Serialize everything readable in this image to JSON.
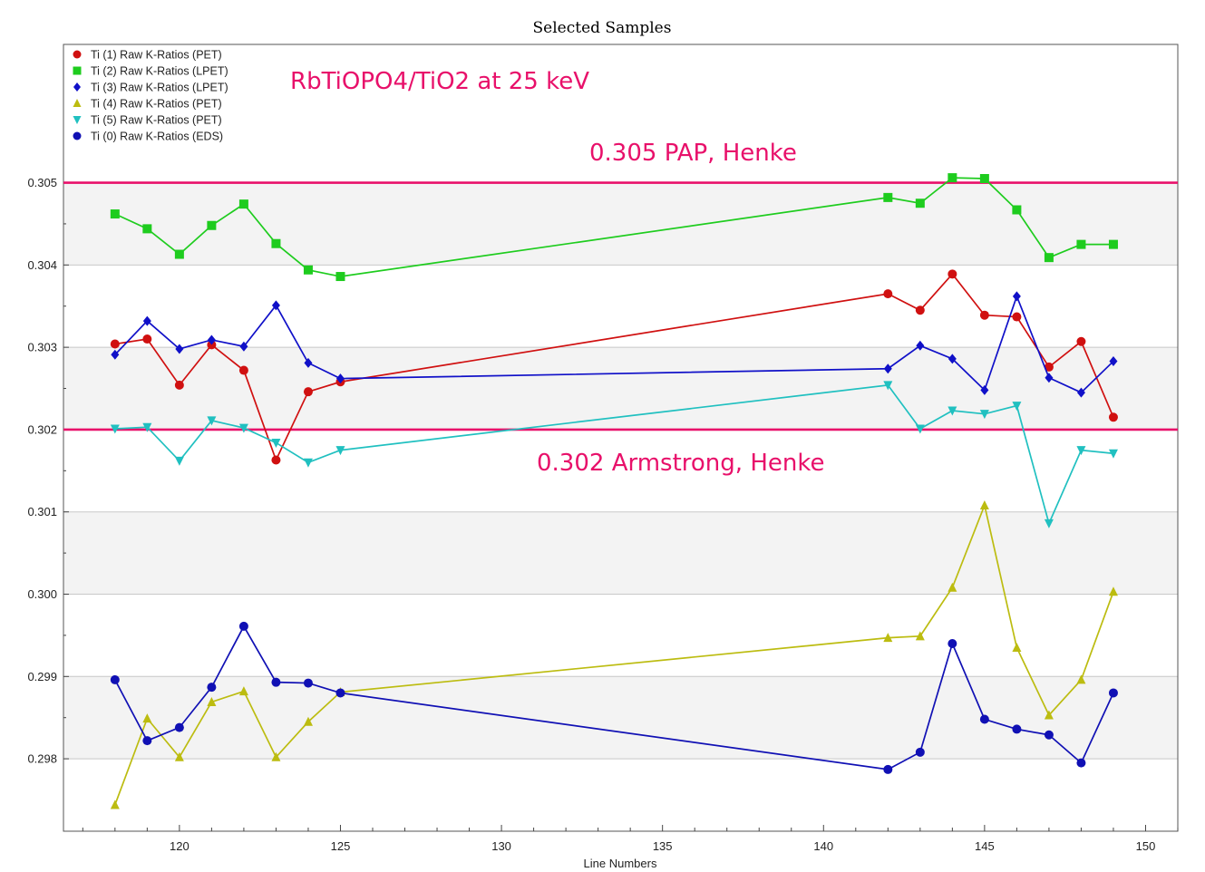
{
  "chart_data": {
    "type": "line",
    "title": "Selected Samples",
    "xlabel": "Line Numbers",
    "ylabel": "",
    "xlim": [
      116.4,
      151.0
    ],
    "ylim": [
      0.29712,
      0.30668
    ],
    "xticks": [
      120,
      125,
      130,
      135,
      140,
      145,
      150
    ],
    "xtick_labels": [
      "120",
      "125",
      "130",
      "135",
      "140",
      "145",
      "150"
    ],
    "yticks": [
      0.298,
      0.299,
      0.3,
      0.301,
      0.302,
      0.303,
      0.304,
      0.305
    ],
    "ytick_labels": [
      "0.298",
      "0.299",
      "0.300",
      "0.301",
      "0.302",
      "0.303",
      "0.304",
      "0.305"
    ],
    "grid": true,
    "legend_position": "top-left",
    "series": [
      {
        "name": "Ti (1) Raw K-Ratios (PET)",
        "color": "#d01010",
        "marker": "circle",
        "x": [
          118,
          119,
          120,
          121,
          122,
          123,
          124,
          125,
          142,
          143,
          144,
          145,
          146,
          147,
          148,
          149
        ],
        "y": [
          0.30304,
          0.3031,
          0.30254,
          0.30303,
          0.30272,
          0.30163,
          0.30246,
          0.30258,
          0.30365,
          0.30345,
          0.30389,
          0.30339,
          0.30337,
          0.30276,
          0.30307,
          0.30215
        ]
      },
      {
        "name": "Ti (2) Raw K-Ratios (LPET)",
        "color": "#1ecc1e",
        "marker": "square",
        "x": [
          118,
          119,
          120,
          121,
          122,
          123,
          124,
          125,
          142,
          143,
          144,
          145,
          146,
          147,
          148,
          149
        ],
        "y": [
          0.30462,
          0.30444,
          0.30413,
          0.30448,
          0.30474,
          0.30426,
          0.30394,
          0.30386,
          0.30482,
          0.30475,
          0.30506,
          0.30505,
          0.30467,
          0.30409,
          0.30425,
          0.30425
        ]
      },
      {
        "name": "Ti (3) Raw K-Ratios (LPET)",
        "color": "#1010c8",
        "marker": "diamond",
        "x": [
          118,
          119,
          120,
          121,
          122,
          123,
          124,
          125,
          142,
          143,
          144,
          145,
          146,
          147,
          148,
          149
        ],
        "y": [
          0.30291,
          0.30332,
          0.30298,
          0.30309,
          0.30301,
          0.30351,
          0.30281,
          0.30262,
          0.30274,
          0.30302,
          0.30286,
          0.30248,
          0.30362,
          0.30263,
          0.30245,
          0.30283
        ]
      },
      {
        "name": "Ti (4) Raw K-Ratios (PET)",
        "color": "#bcbc10",
        "marker": "triangle-up",
        "x": [
          118,
          119,
          120,
          121,
          122,
          123,
          124,
          125,
          142,
          143,
          144,
          145,
          146,
          147,
          148,
          149
        ],
        "y": [
          0.29744,
          0.29849,
          0.29802,
          0.29869,
          0.29882,
          0.29802,
          0.29845,
          0.29881,
          0.29947,
          0.29949,
          0.30008,
          0.30108,
          0.29935,
          0.29853,
          0.29896,
          0.30003
        ]
      },
      {
        "name": "Ti (5) Raw K-Ratios (PET)",
        "color": "#20c0c0",
        "marker": "triangle-down",
        "x": [
          118,
          119,
          120,
          121,
          122,
          123,
          124,
          125,
          142,
          143,
          144,
          145,
          146,
          147,
          148,
          149
        ],
        "y": [
          0.30201,
          0.30203,
          0.30162,
          0.30211,
          0.30202,
          0.30184,
          0.3016,
          0.30175,
          0.30254,
          0.30201,
          0.30223,
          0.30219,
          0.30229,
          0.30086,
          0.30175,
          0.30171
        ]
      },
      {
        "name": "Ti (0) Raw K-Ratios (EDS)",
        "color": "#1010b4",
        "marker": "circle",
        "x": [
          118,
          119,
          120,
          121,
          122,
          123,
          124,
          125,
          142,
          143,
          144,
          145,
          146,
          147,
          148,
          149
        ],
        "y": [
          0.29896,
          0.29822,
          0.29838,
          0.29887,
          0.29961,
          0.29893,
          0.29892,
          0.2988,
          0.29787,
          0.29808,
          0.2994,
          0.29848,
          0.29836,
          0.29829,
          0.29795,
          0.2988
        ]
      }
    ],
    "reference_lines": [
      {
        "y": 0.305,
        "label": "0.305 PAP, Henke",
        "color": "#e8106a"
      },
      {
        "y": 0.302,
        "label": "0.302 Armstrong, Henke",
        "color": "#e8106a"
      }
    ],
    "annotations": [
      {
        "text": "RbTiOPO4/TiO2 at 25 keV",
        "color": "#e8106a"
      }
    ]
  }
}
